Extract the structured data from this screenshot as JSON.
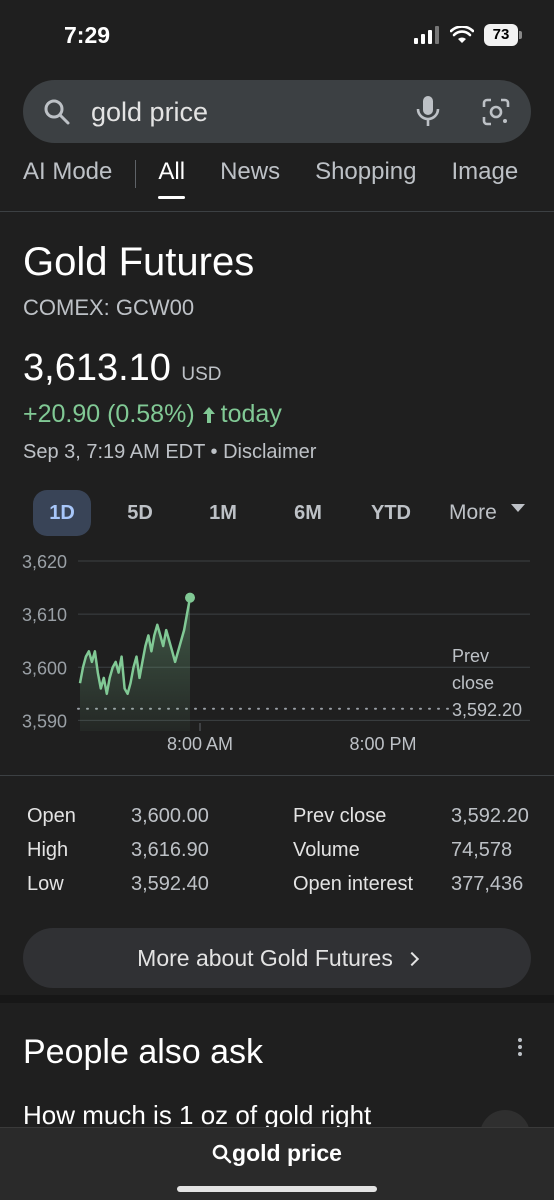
{
  "status_bar": {
    "time": "7:29",
    "battery": "73"
  },
  "search": {
    "query": "gold price"
  },
  "tabs": [
    {
      "label": "AI Mode"
    },
    {
      "label": "All"
    },
    {
      "label": "News"
    },
    {
      "label": "Shopping"
    },
    {
      "label": "Image"
    }
  ],
  "quote": {
    "title": "Gold Futures",
    "exchange": "COMEX: GCW00",
    "price": "3,613.10",
    "currency": "USD",
    "change": "+20.90 (0.58%)",
    "change_suffix": "today",
    "timestamp": "Sep 3, 7:19 AM EDT",
    "separator": "•",
    "disclaimer": "Disclaimer",
    "positive_color": "#81c995"
  },
  "ranges": [
    {
      "label": "1D",
      "active": true
    },
    {
      "label": "5D"
    },
    {
      "label": "1M"
    },
    {
      "label": "6M"
    },
    {
      "label": "YTD"
    }
  ],
  "range_more": "More",
  "chart_data": {
    "type": "line",
    "y_ticks": [
      "3,620",
      "3,610",
      "3,600",
      "3,590"
    ],
    "ylim": [
      3588,
      3620
    ],
    "x_ticks": [
      "8:00 AM",
      "8:00 PM"
    ],
    "prev_close_label_1": "Prev",
    "prev_close_label_2": "close",
    "prev_close_value": "3,592.20",
    "prev_close": 3592.2,
    "series": [
      {
        "color": "#81c995",
        "values": [
          3597,
          3600,
          3602,
          3603,
          3601,
          3603,
          3599,
          3596,
          3598,
          3595,
          3598,
          3600,
          3601,
          3599,
          3602,
          3596,
          3595,
          3597,
          3600,
          3602,
          3598,
          3601,
          3604,
          3606,
          3603,
          3606,
          3608,
          3606,
          3604,
          3607,
          3605,
          3603,
          3601,
          3603,
          3605,
          3607,
          3610,
          3613.1
        ]
      }
    ]
  },
  "stats": {
    "open_label": "Open",
    "open": "3,600.00",
    "high_label": "High",
    "high": "3,616.90",
    "low_label": "Low",
    "low": "3,592.40",
    "prev_close_label": "Prev close",
    "prev_close": "3,592.20",
    "volume_label": "Volume",
    "volume": "74,578",
    "open_interest_label": "Open interest",
    "open_interest": "377,436"
  },
  "more_button": "More about Gold Futures",
  "paa": {
    "title": "People also ask",
    "question": "How much is 1 oz of gold right"
  },
  "bottom_bar": {
    "query": "gold price"
  }
}
